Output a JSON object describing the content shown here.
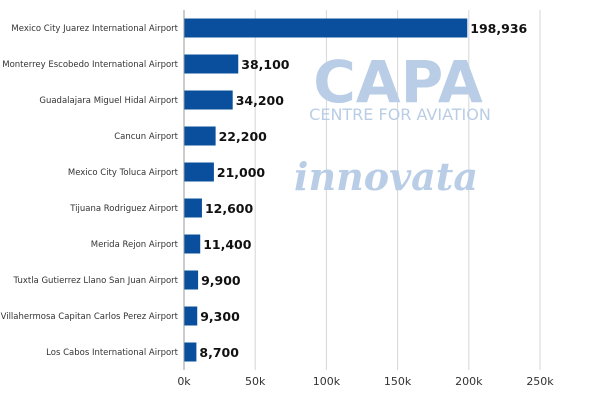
{
  "chart_data": {
    "type": "bar",
    "orientation": "horizontal",
    "categories": [
      "Mexico City Juarez International Airport",
      "Monterrey Escobedo International Airport",
      "Guadalajara Miguel Hidal Airport",
      "Cancun Airport",
      "Mexico City Toluca Airport",
      "Tijuana Rodriguez Airport",
      "Merida Rejon Airport",
      "Tuxtla Gutierrez Llano San Juan Airport",
      "Villahermosa Capitan Carlos Perez Airport",
      "Los Cabos International Airport"
    ],
    "values": [
      198936,
      38100,
      34200,
      22200,
      21000,
      12600,
      11400,
      9900,
      9300,
      8700
    ],
    "data_labels": [
      "198,936",
      "38,100",
      "34,200",
      "22,200",
      "21,000",
      "12,600",
      "11,400",
      "9,900",
      "9,300",
      "8,700"
    ],
    "x_ticks": [
      0,
      50000,
      100000,
      150000,
      200000,
      250000
    ],
    "x_tick_labels": [
      "0k",
      "50k",
      "100k",
      "150k",
      "200k",
      "250k"
    ],
    "xlim": [
      0,
      250000
    ],
    "grid": true,
    "bar_color": "#0a4f9e",
    "title": "",
    "xlabel": "",
    "ylabel": ""
  },
  "watermark": {
    "brand": "CAPA",
    "subtitle": "CENTRE FOR AVIATION",
    "partner": "innovata",
    "brand_color": "#b9cde6",
    "partner_color": "#b9cde6"
  }
}
